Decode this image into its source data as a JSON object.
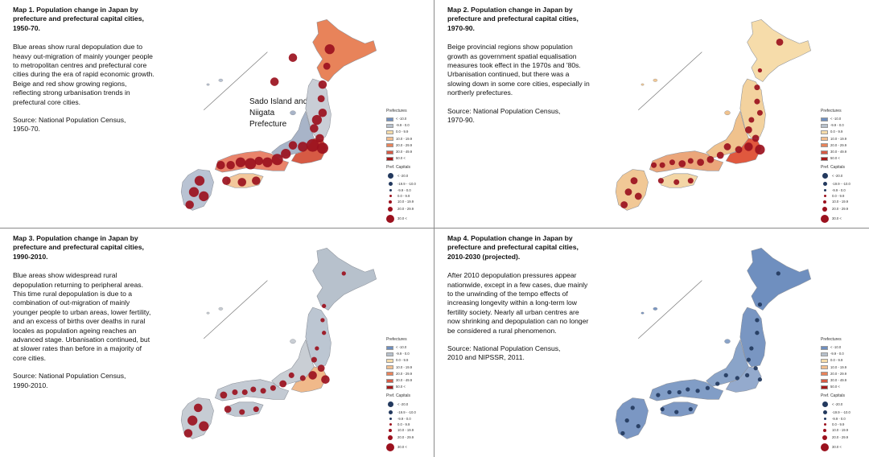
{
  "panels": [
    {
      "title": "Map 1. Population change in Japan by prefecture and prefectural capital cities, 1950-70.",
      "description": "Blue areas show rural depopulation due to heavy out-migration of mainly younger people to metropolitan centres and prefectural core cities during the era of rapid economic growth. Beige and red show growing regions, reflecting strong urbanisation trends in prefectural core cities.",
      "source": "Source: National Population Census,\n1950-70.",
      "note": "Sado Island and Niigata Prefecture",
      "fills": {
        "hokkaido": "#e8835a",
        "north": "#c9ced6",
        "center": "#a8b4c8",
        "east": "#d65a44",
        "west": "#e9836a",
        "kyushu": "#b9c3d3",
        "shikoku": "#f3c79b"
      },
      "dot_color": "#9b111e"
    },
    {
      "title": "Map 2. Population change in Japan by prefecture and prefectural capital cities, 1970-90.",
      "description": "Beige provincial regions show population growth as government spatial equalisation measures took effect in the 1970s and '80s. Urbanisation continued, but there was a slowing down in some core cities, especially in northerly prefectures.",
      "source": "Source: National Population Census,\n1970-90.",
      "note": "",
      "fills": {
        "hokkaido": "#f6dcaa",
        "north": "#f3d29e",
        "center": "#f0c28d",
        "east": "#e0583e",
        "west": "#eba67a",
        "kyushu": "#f1c896",
        "shikoku": "#f3d6a6"
      },
      "dot_color": "#9b111e"
    },
    {
      "title": "Map 3. Population change in Japan by prefecture and prefectural capital cities, 1990-2010.",
      "description": "Blue areas show widespread rural depopulation returning to peripheral areas. This time rural depopulation is due to a combination of out-migration of mainly younger people to urban areas, lower fertility, and an excess of births over deaths in rural locales as population ageing reaches an advanced stage. Urbanisation continued, but at slower rates than before in a majority of core cities.",
      "source": "Source: National Population Census,\n1990-2010.",
      "note": "",
      "fills": {
        "hokkaido": "#b7c1cc",
        "north": "#bcc6d2",
        "center": "#c9ced4",
        "east": "#f0b98a",
        "west": "#c3cad3",
        "kyushu": "#c6ccd3",
        "shikoku": "#bfc7d1"
      },
      "dot_color": "#9b111e"
    },
    {
      "title": "Map 4. Population change in Japan by prefecture and prefectural capital cities, 2010-2030 (projected).",
      "description": "After 2010 depopulation pressures appear nationwide, except in a few cases, due mainly to the unwinding of the tempo effects of increasing longevity within a long-term low fertility society. Nearly all urban centres are now shrinking and depopulation can no longer be considered a rural phenomenon.",
      "source": "Source: National Population Census,\n2010 and NIPSSR, 2011.",
      "note": "",
      "fills": {
        "hokkaido": "#6f8fbf",
        "north": "#7996c2",
        "center": "#8aa4c9",
        "east": "#94aacd",
        "west": "#819dc6",
        "kyushu": "#7b97c3",
        "shikoku": "#7e99c4"
      },
      "dot_color": "#23395e"
    }
  ],
  "legend": {
    "prefectures_title": "Prefectures",
    "prefecture_items": [
      {
        "label": "< -10.0",
        "color": "#6f8fbf"
      },
      {
        "label": "-9.9 - 0.0",
        "color": "#b7c1cc"
      },
      {
        "label": "0.0 - 9.9",
        "color": "#f6dcaa"
      },
      {
        "label": "10.0 - 19.9",
        "color": "#f2bf8f"
      },
      {
        "label": "20.0 - 29.9",
        "color": "#e8835a"
      },
      {
        "label": "30.0 - 49.9",
        "color": "#d65a44"
      },
      {
        "label": "50.0 <",
        "color": "#a61a1a"
      }
    ],
    "capitals_title": "Pref. Capitals",
    "capital_items": [
      {
        "label": "< -20.0"
      },
      {
        "label": "-19.9 - -10.0"
      },
      {
        "label": "-9.9 - 0.0"
      },
      {
        "label": "0.0 - 9.9"
      },
      {
        "label": "10.0 - 19.9"
      },
      {
        "label": "20.0 - 29.9"
      },
      {
        "label": "30.0 <"
      }
    ]
  }
}
